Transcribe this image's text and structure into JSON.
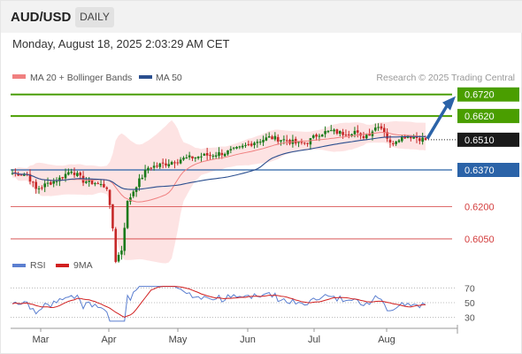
{
  "header": {
    "symbol": "AUD/USD",
    "timeframe": "DAILY"
  },
  "datetime": "Monday, August 18, 2025 2:03:29 AM CET",
  "colors": {
    "ma20": "#f08080",
    "ma50": "#2b4f8f",
    "resistance": "#4a9e00",
    "pivot": "#222222",
    "support_main": "#2b63a8",
    "support_other": "#d33c3c",
    "rsi": "#5b7fd0",
    "rsi_ma": "#d11f1f",
    "candle_up": "#1a7a1a",
    "candle_down": "#c62828"
  },
  "chart_data": [
    {
      "type": "candlestick",
      "title": "",
      "legend": [
        {
          "name": "MA 20 + Bollinger Bands",
          "color": "#f08080"
        },
        {
          "name": "MA 50",
          "color": "#2b4f8f"
        }
      ],
      "credit": "Research © 2025 Trading Central",
      "x_labels": [
        "Mar",
        "Apr",
        "May",
        "Jun",
        "Jul",
        "Aug"
      ],
      "ylim": [
        0.598,
        0.676
      ],
      "levels": [
        {
          "value": 0.672,
          "label": "0.6720",
          "kind": "resistance"
        },
        {
          "value": 0.662,
          "label": "0.6620",
          "kind": "resistance"
        },
        {
          "value": 0.651,
          "label": "0.6510",
          "kind": "pivot"
        },
        {
          "value": 0.637,
          "label": "0.6370",
          "kind": "support_main"
        },
        {
          "value": 0.62,
          "label": "0.6200",
          "kind": "support_other"
        },
        {
          "value": 0.605,
          "label": "0.6050",
          "kind": "support_other"
        }
      ],
      "forecast_arrow": {
        "from": 0.6515,
        "to": 0.672
      }
    },
    {
      "type": "line",
      "legend": [
        {
          "name": "RSI",
          "color": "#5b7fd0"
        },
        {
          "name": "9MA",
          "color": "#d11f1f"
        }
      ],
      "y_ticks": [
        "70",
        "50",
        "30"
      ],
      "ylim": [
        20,
        80
      ]
    }
  ]
}
